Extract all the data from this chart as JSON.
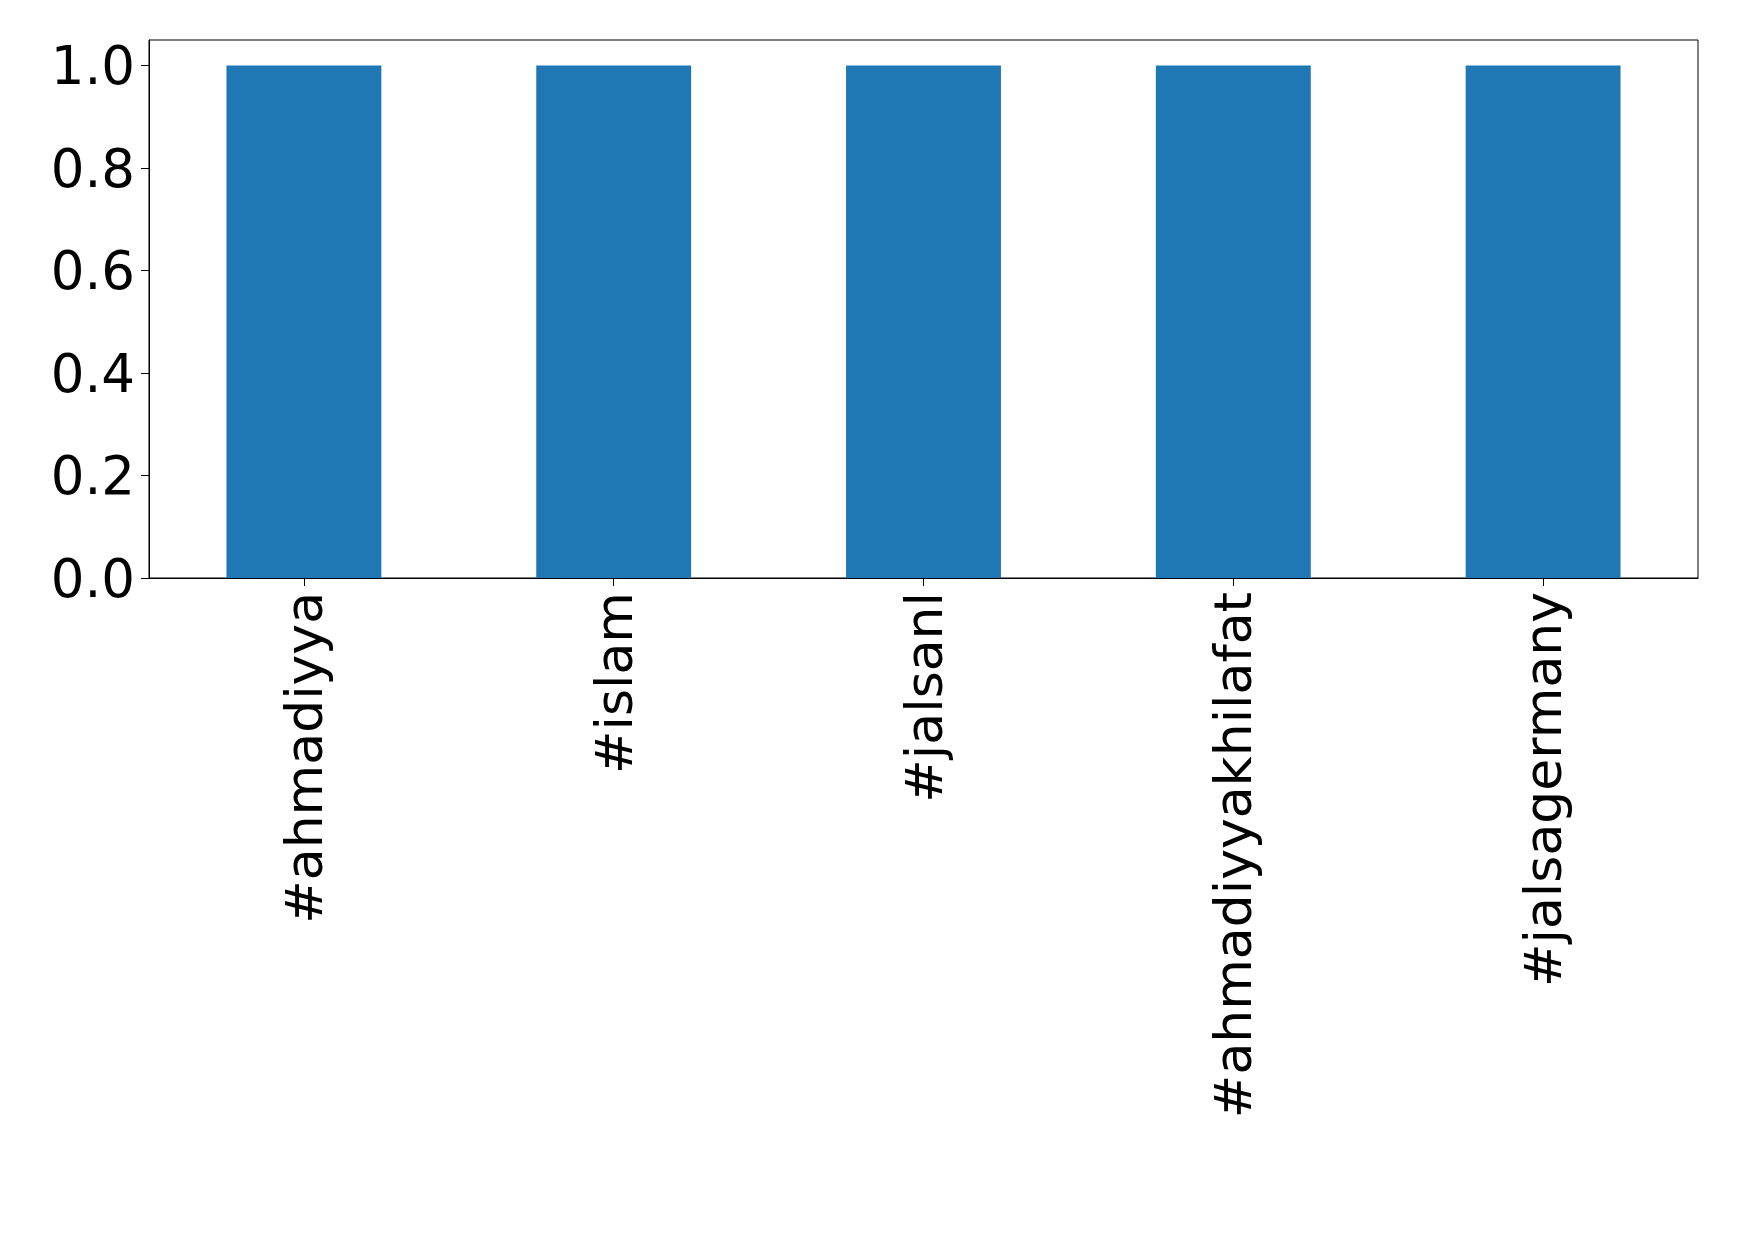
{
  "chart_data": {
    "type": "bar",
    "categories": [
      "#ahmadiyya",
      "#islam",
      "#jalsanl",
      "#ahmadiyyakhilafat",
      "#jalsagermany"
    ],
    "values": [
      1,
      1,
      1,
      1,
      1
    ],
    "color": "#1f77b4",
    "ylim": [
      0,
      1.05
    ],
    "yticks": [
      {
        "value": 0,
        "label": "0.0"
      },
      {
        "value": 0.2,
        "label": "0.2"
      },
      {
        "value": 0.4,
        "label": "0.4"
      },
      {
        "value": 0.6,
        "label": "0.6"
      },
      {
        "value": 0.8,
        "label": "0.8"
      },
      {
        "value": 1,
        "label": "1.0"
      }
    ]
  }
}
